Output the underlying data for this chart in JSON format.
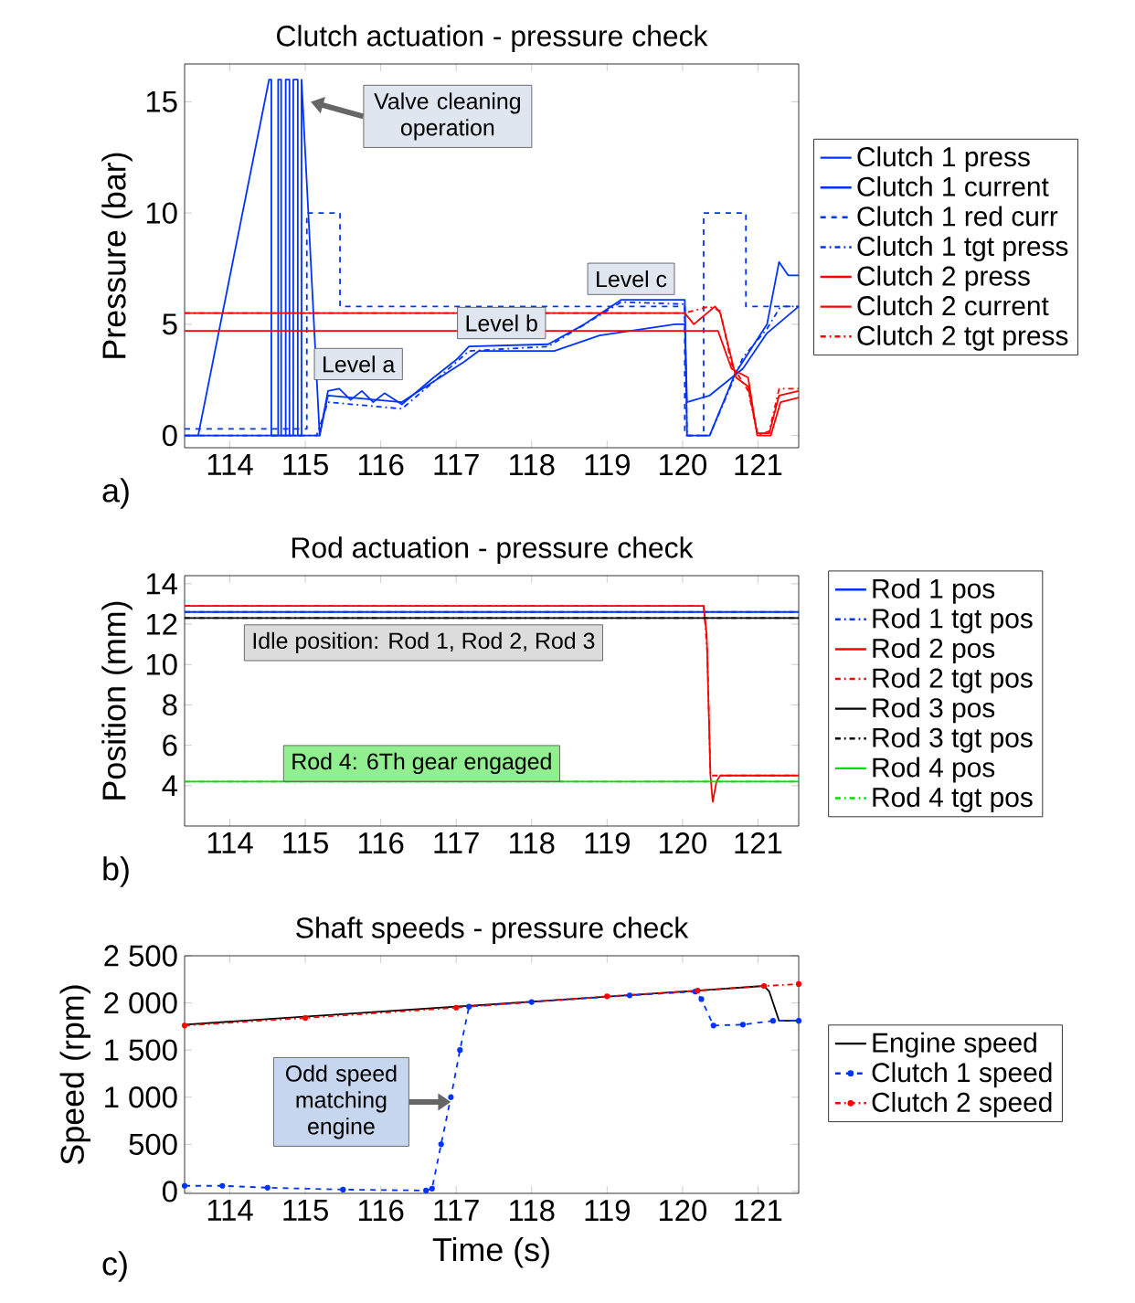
{
  "chart_data": [
    {
      "type": "line",
      "title": "Clutch actuation - pressure check",
      "ylabel": "Pressure (bar)",
      "xlim": [
        113.4,
        121.54
      ],
      "xticks": [
        114,
        115,
        116,
        117,
        118,
        119,
        120,
        121
      ],
      "ylim": [
        -0.55,
        16.7
      ],
      "yticks": [
        0,
        5,
        10,
        15
      ],
      "legend": "right",
      "series": [
        {
          "name": "Clutch 1 press",
          "color": "#0033ff",
          "line_style": "solid",
          "x": [
            113.4,
            115.19,
            115.3,
            115.45,
            115.6,
            115.75,
            115.9,
            116.05,
            116.28,
            116.7,
            117.0,
            117.17,
            118.22,
            118.7,
            119.19,
            120.03,
            120.06,
            120.36,
            120.7,
            121.12,
            121.28,
            121.4,
            121.54
          ],
          "values": [
            0,
            0,
            2.0,
            2.1,
            1.6,
            2.0,
            1.5,
            1.9,
            1.4,
            2.6,
            3.4,
            4.0,
            4.1,
            5.0,
            6.1,
            6.1,
            0,
            0,
            2.8,
            5.0,
            7.8,
            7.2,
            7.2
          ]
        },
        {
          "name": "Clutch 1 current",
          "color": "#0033ff",
          "line_style": "solid",
          "x": [
            113.4,
            113.58,
            114.52,
            114.55,
            114.55,
            114.64,
            114.64,
            114.68,
            114.68,
            114.74,
            114.74,
            114.79,
            114.79,
            114.84,
            114.84,
            114.9,
            114.9,
            114.95,
            114.95,
            115.19,
            115.3,
            116.28,
            117.1,
            117.3,
            118.3,
            118.9,
            119.9,
            120.03,
            120.06,
            120.36,
            120.8,
            121.12,
            121.54
          ],
          "values": [
            0,
            0,
            16,
            16,
            0,
            0,
            16,
            16,
            0,
            0,
            16,
            16,
            0,
            0,
            16,
            16,
            0,
            0,
            16,
            0,
            1.8,
            1.5,
            3.3,
            3.8,
            3.8,
            4.5,
            5.0,
            5.0,
            1.5,
            1.8,
            3.0,
            4.6,
            5.8
          ]
        },
        {
          "name": "Clutch 1 red curr",
          "color": "#0033ff",
          "line_style": "dashed",
          "x": [
            113.4,
            115.02,
            115.02,
            115.46,
            115.46,
            120.03,
            120.03,
            120.28,
            120.28,
            120.84,
            120.84,
            121.54
          ],
          "values": [
            0.3,
            0.3,
            10,
            10,
            5.8,
            5.8,
            0,
            0,
            10,
            10,
            5.8,
            5.8
          ]
        },
        {
          "name": "Clutch 1 tgt press",
          "color": "#0033ff",
          "line_style": "dashdot",
          "x": [
            113.4,
            115.15,
            115.3,
            116.28,
            116.8,
            117.17,
            118.22,
            119.19,
            120.03,
            120.06,
            120.36,
            120.8,
            121.12,
            121.3,
            121.54
          ],
          "values": [
            0,
            0,
            1.5,
            1.2,
            2.7,
            3.8,
            4.0,
            6.0,
            5.9,
            0,
            0,
            3.5,
            4.8,
            5.8,
            5.8
          ]
        },
        {
          "name": "Clutch 2 press",
          "color": "#ff0000",
          "line_style": "solid",
          "x": [
            113.4,
            120.03,
            120.15,
            120.43,
            120.5,
            120.71,
            120.87,
            120.99,
            121.15,
            121.28,
            121.54
          ],
          "values": [
            5.5,
            5.5,
            5.0,
            5.8,
            5.5,
            2.6,
            2.2,
            0.1,
            0.1,
            1.8,
            2.0
          ]
        },
        {
          "name": "Clutch 2 current",
          "color": "#ff0000",
          "line_style": "solid",
          "x": [
            113.4,
            120.47,
            120.65,
            120.87,
            120.99,
            121.17,
            121.3,
            121.54
          ],
          "values": [
            4.7,
            4.7,
            3.0,
            2.6,
            0,
            0,
            1.5,
            1.7
          ]
        },
        {
          "name": "Clutch 2 tgt press",
          "color": "#ff0000",
          "line_style": "dashdot",
          "x": [
            113.4,
            120.03,
            120.35,
            120.5,
            120.65,
            120.87,
            121.0,
            121.15,
            121.28,
            121.54
          ],
          "values": [
            5.5,
            5.5,
            5.8,
            5.6,
            3.2,
            2.0,
            0,
            0.2,
            2.1,
            2.1
          ]
        }
      ],
      "annotations": [
        {
          "text": "Valve cleaning operation",
          "x": 115.07,
          "y": 15
        },
        "Level a",
        "Level b",
        "Level c",
        "a)"
      ]
    },
    {
      "type": "line",
      "title": "Rod actuation  - pressure check",
      "ylabel": "Position (mm)",
      "xlim": [
        113.4,
        121.54
      ],
      "xticks": [
        114,
        115,
        116,
        117,
        118,
        119,
        120,
        121
      ],
      "ylim": [
        2,
        14.4
      ],
      "yticks": [
        4,
        6,
        8,
        10,
        12,
        14
      ],
      "legend": "right",
      "series": [
        {
          "name": "Rod 1 pos",
          "color": "#0033ff",
          "line_style": "solid",
          "x": [
            113.4,
            121.54
          ],
          "values": [
            12.6,
            12.6
          ]
        },
        {
          "name": "Rod 1 tgt pos",
          "color": "#0033ff",
          "line_style": "dashdot",
          "x": [
            113.4,
            121.54
          ],
          "values": [
            12.6,
            12.6
          ]
        },
        {
          "name": "Rod 2 pos",
          "color": "#ff0000",
          "line_style": "solid",
          "x": [
            113.4,
            120.28,
            120.32,
            120.37,
            120.4,
            120.45,
            120.5,
            121.54
          ],
          "values": [
            12.9,
            12.9,
            11.5,
            4.5,
            3.2,
            4.2,
            4.5,
            4.5
          ]
        },
        {
          "name": "Rod 2 tgt pos",
          "color": "#ff0000",
          "line_style": "dashdot",
          "x": [
            113.4,
            120.28,
            120.3,
            120.33,
            120.37,
            121.54
          ],
          "values": [
            12.9,
            12.9,
            12.0,
            10.5,
            4.5,
            4.5
          ]
        },
        {
          "name": "Rod 3 pos",
          "color": "#000000",
          "line_style": "solid",
          "x": [
            113.4,
            121.54
          ],
          "values": [
            12.3,
            12.3
          ]
        },
        {
          "name": "Rod 3 tgt pos",
          "color": "#000000",
          "line_style": "dashdot",
          "x": [
            113.4,
            121.54
          ],
          "values": [
            12.3,
            12.3
          ]
        },
        {
          "name": "Rod 4 pos",
          "color": "#00dd00",
          "line_style": "solid",
          "x": [
            113.4,
            121.54
          ],
          "values": [
            4.2,
            4.2
          ]
        },
        {
          "name": "Rod 4 tgt pos",
          "color": "#00dd00",
          "line_style": "dashdot",
          "x": [
            113.4,
            121.54
          ],
          "values": [
            4.2,
            4.2
          ]
        }
      ],
      "annotations": [
        "Idle position: Rod 1, Rod 2, Rod 3",
        "Rod 4: 6Th gear engaged",
        "b)"
      ]
    },
    {
      "type": "line",
      "title": "Shaft speeds - pressure check",
      "xlabel": "Time (s)",
      "ylabel": "Speed (rpm)",
      "xlim": [
        113.4,
        121.54
      ],
      "xticks": [
        114,
        115,
        116,
        117,
        118,
        119,
        120,
        121
      ],
      "ylim": [
        -20,
        2500
      ],
      "yticks": [
        0,
        500,
        {
          "value": 1000,
          "label": "1 000"
        },
        {
          "value": 1500,
          "label": "1 500"
        },
        {
          "value": 2000,
          "label": "2 000"
        },
        {
          "value": 2500,
          "label": "2 500"
        }
      ],
      "legend": "right",
      "series": [
        {
          "name": "Engine speed",
          "color": "#000000",
          "line_style": "solid",
          "x": [
            113.4,
            120.2,
            121.08,
            121.15,
            121.2,
            121.28,
            121.54
          ],
          "values": [
            1770,
            2130,
            2180,
            2120,
            2000,
            1810,
            1810
          ]
        },
        {
          "name": "Clutch 1 speed",
          "color": "#0033ff",
          "line_style": "dashed",
          "marker": "circle",
          "x": [
            113.4,
            113.9,
            114.5,
            115.5,
            116.6,
            116.68,
            116.8,
            116.93,
            117.05,
            117.17,
            118.0,
            119.3,
            120.17,
            120.25,
            120.41,
            120.8,
            121.2,
            121.54
          ],
          "values": [
            60,
            60,
            40,
            20,
            10,
            30,
            500,
            1000,
            1500,
            1960,
            2010,
            2080,
            2120,
            2040,
            1760,
            1770,
            1810,
            1810
          ]
        },
        {
          "name": "Clutch 2 speed",
          "color": "#ff0000",
          "line_style": "dashdot",
          "marker": "circle",
          "x": [
            113.4,
            115.0,
            117.0,
            119.0,
            120.2,
            121.08,
            121.54
          ],
          "values": [
            1760,
            1840,
            1950,
            2070,
            2130,
            2180,
            2200
          ]
        }
      ],
      "annotations": [
        {
          "text": "Odd speed matching engine",
          "x": 116.93,
          "y": 950
        },
        "c)"
      ]
    }
  ]
}
